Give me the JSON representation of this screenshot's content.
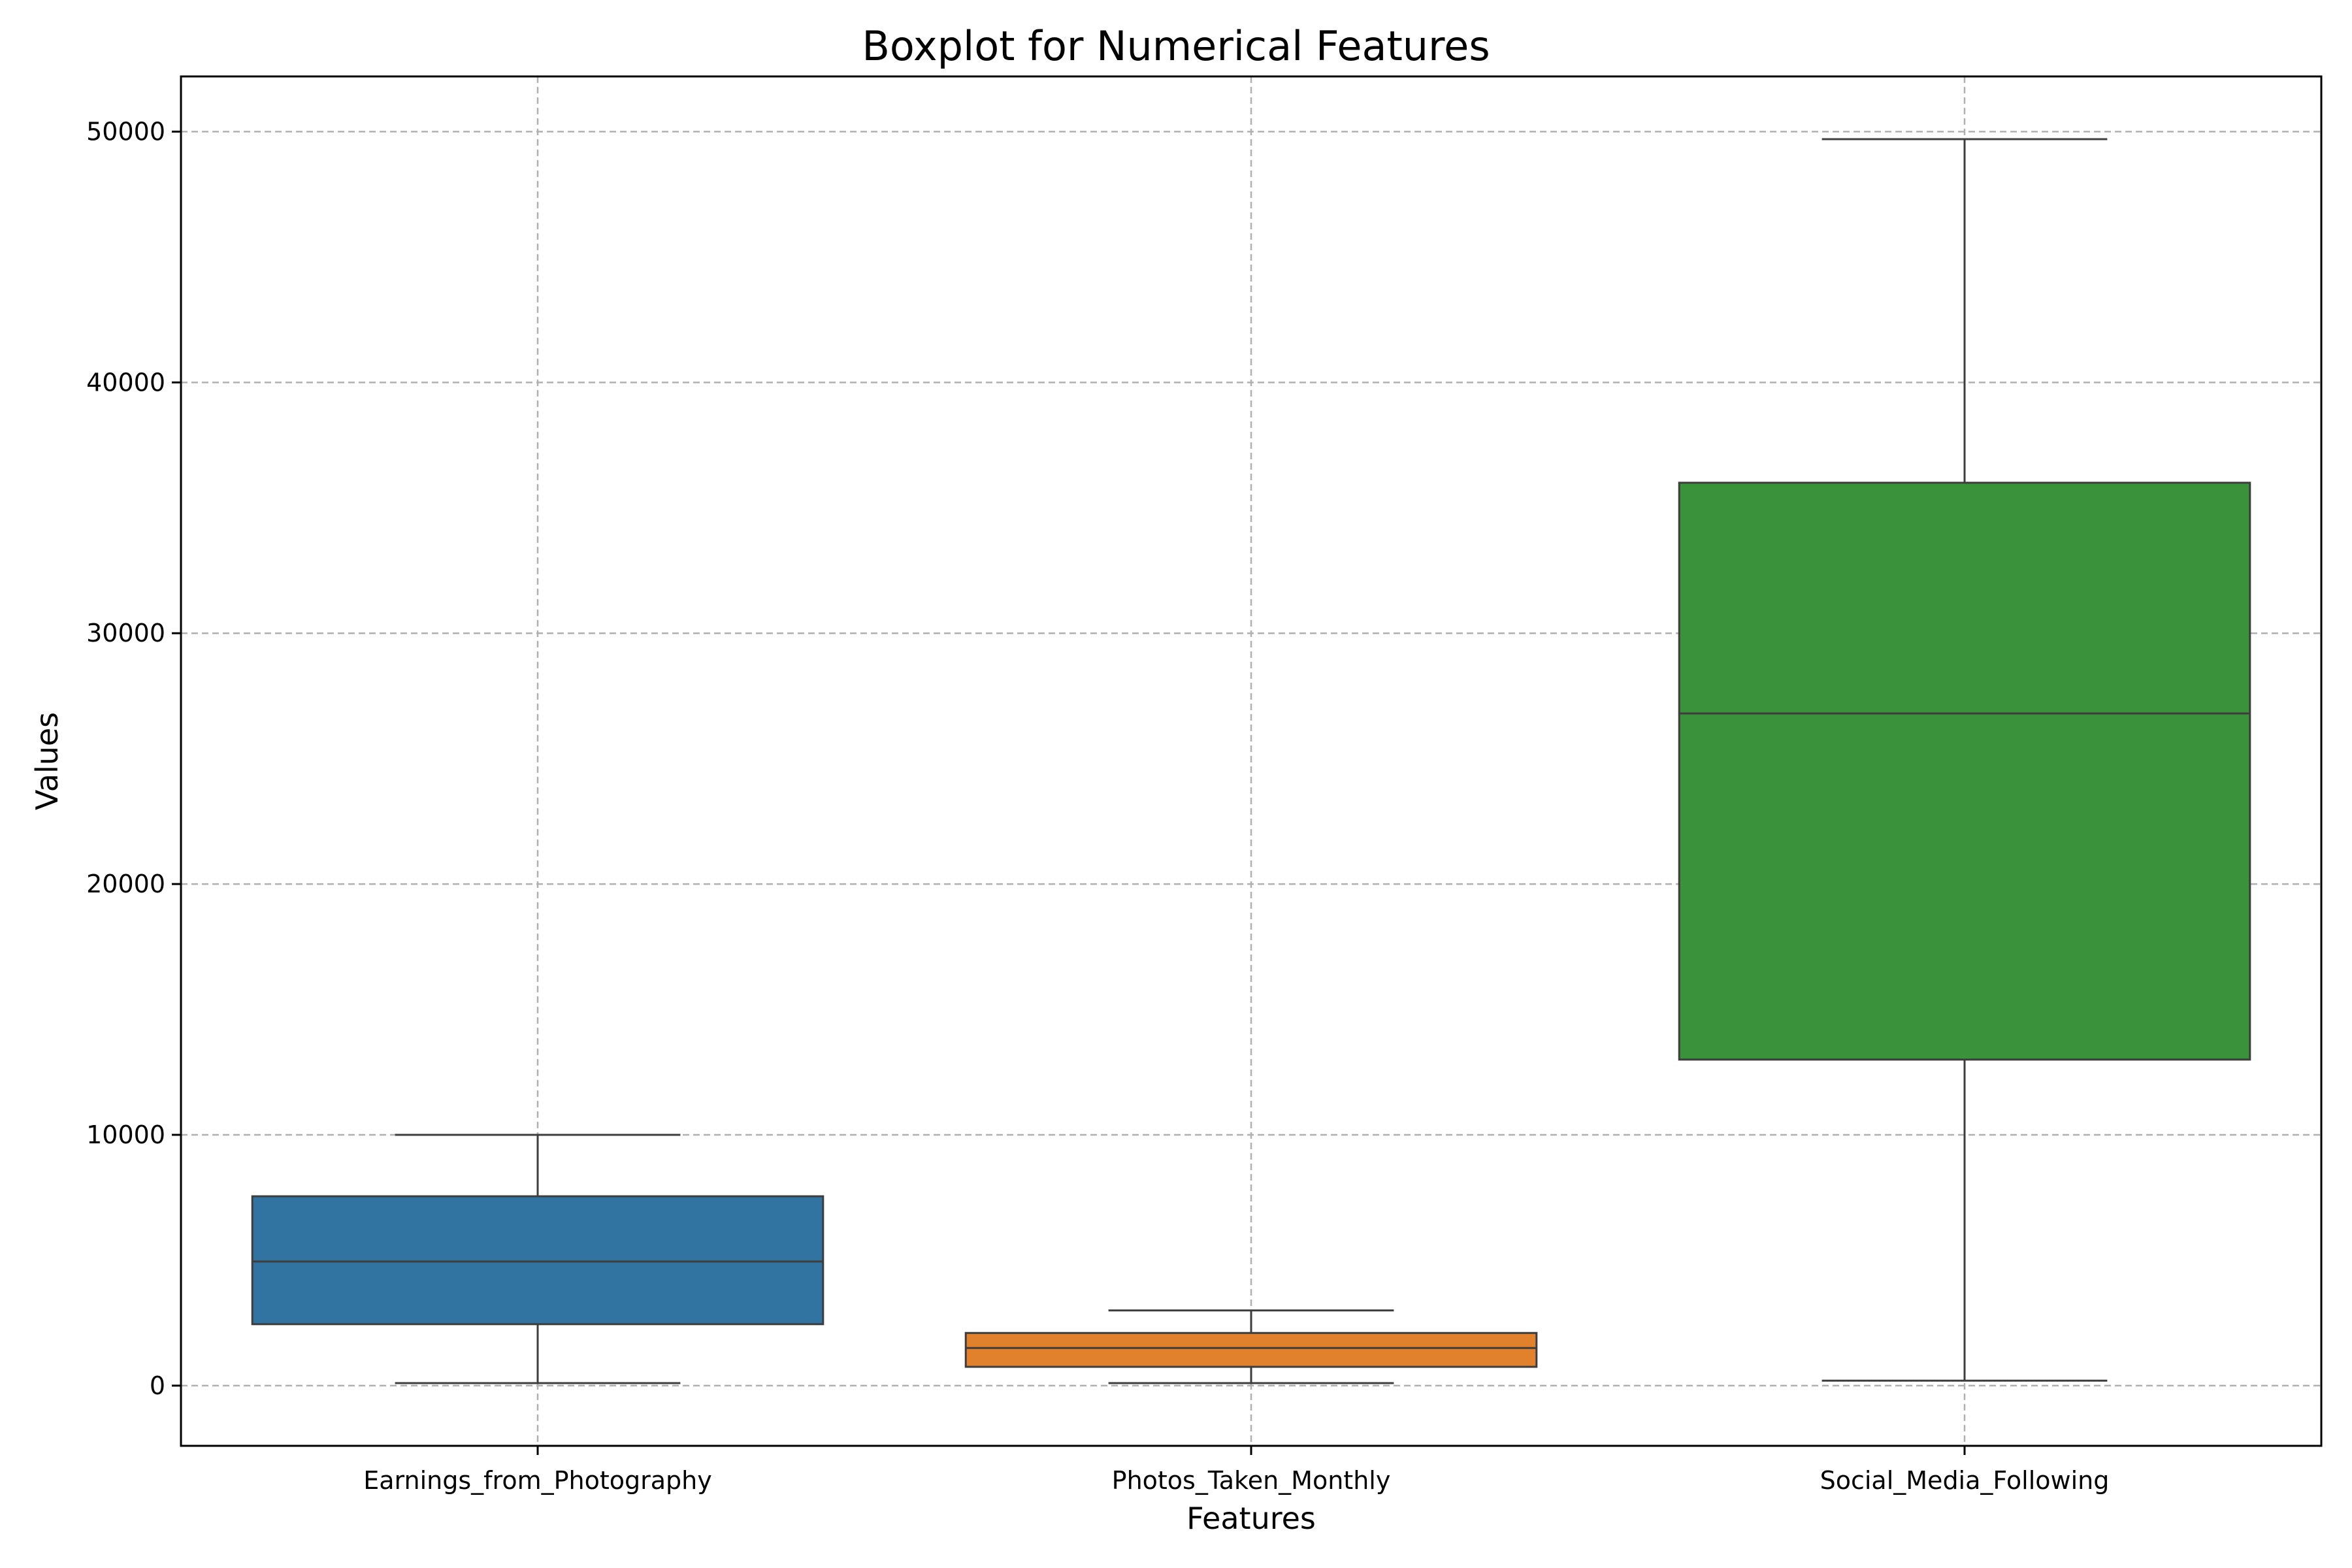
{
  "chart_data": {
    "type": "boxplot",
    "title": "Boxplot for Numerical Features",
    "xlabel": "Features",
    "ylabel": "Values",
    "ylim": [
      -2400,
      52200
    ],
    "yticks": [
      0,
      10000,
      20000,
      30000,
      40000,
      50000
    ],
    "grid": true,
    "categories": [
      "Earnings_from_Photography",
      "Photos_Taken_Monthly",
      "Social_Media_Following"
    ],
    "boxes": [
      {
        "label": "Earnings_from_Photography",
        "whisker_low": 100,
        "q1": 2450,
        "median": 4950,
        "q3": 7550,
        "whisker_high": 10000,
        "color": "#3274a1"
      },
      {
        "label": "Photos_Taken_Monthly",
        "whisker_low": 100,
        "q1": 750,
        "median": 1500,
        "q3": 2100,
        "whisker_high": 3000,
        "color": "#e1812c"
      },
      {
        "label": "Social_Media_Following",
        "whisker_low": 200,
        "q1": 13000,
        "median": 26800,
        "q3": 36000,
        "whisker_high": 49700,
        "color": "#3a923a"
      }
    ],
    "colors": {
      "line": "#3d3d3d",
      "grid": "#b0b0b0"
    }
  }
}
